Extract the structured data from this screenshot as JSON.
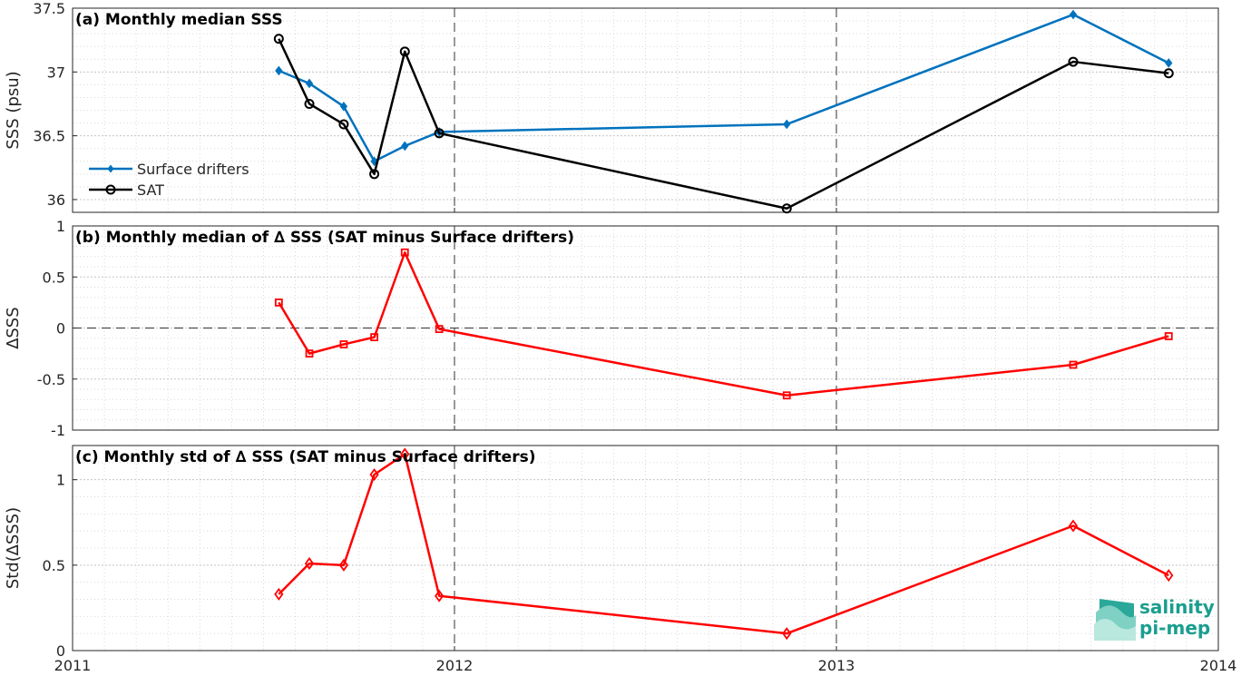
{
  "chart_data": [
    {
      "type": "line",
      "title": "(a) Monthly median SSS",
      "ylabel": "SSS (psu)",
      "ylim": [
        35.9,
        37.5
      ],
      "yticks": [
        36,
        36.5,
        37,
        37.5
      ],
      "ytick_labels": [
        "36",
        "36.5",
        "37",
        "37.5"
      ],
      "xlim": [
        2011.0,
        2014.0
      ],
      "xticks": [
        2011,
        2012,
        2013,
        2014
      ],
      "xtick_labels": [
        "2011",
        "2012",
        "2013",
        "2014"
      ],
      "grid": true,
      "legend_position": "lower-left",
      "x": [
        2011.54,
        2011.62,
        2011.71,
        2011.79,
        2011.87,
        2011.96,
        2012.87,
        2013.62,
        2013.87
      ],
      "series": [
        {
          "name": "Surface drifters",
          "color": "#0072BD",
          "marker": "diamond-filled",
          "values": [
            37.01,
            36.91,
            36.73,
            36.3,
            36.42,
            36.53,
            36.59,
            37.45,
            37.07
          ]
        },
        {
          "name": "SAT",
          "color": "#000000",
          "marker": "circle-open",
          "values": [
            37.26,
            36.75,
            36.59,
            36.2,
            37.16,
            36.52,
            35.93,
            37.08,
            36.99
          ]
        }
      ]
    },
    {
      "type": "line",
      "title": "(b) Monthly median of ∆ SSS (SAT minus Surface drifters)",
      "ylabel": "∆SSS",
      "ylim": [
        -1,
        1
      ],
      "yticks": [
        -1,
        -0.5,
        0,
        0.5,
        1
      ],
      "ytick_labels": [
        "-1",
        "-0.5",
        "0",
        "0.5",
        "1"
      ],
      "xlim": [
        2011.0,
        2014.0
      ],
      "grid": true,
      "zero_line": true,
      "x": [
        2011.54,
        2011.62,
        2011.71,
        2011.79,
        2011.87,
        2011.96,
        2012.87,
        2013.62,
        2013.87
      ],
      "series": [
        {
          "color": "#FF0000",
          "marker": "square-open",
          "values": [
            0.25,
            -0.25,
            -0.16,
            -0.09,
            0.74,
            -0.01,
            -0.66,
            -0.36,
            -0.08
          ]
        }
      ]
    },
    {
      "type": "line",
      "title": "(c) Monthly std of ∆ SSS (SAT minus Surface drifters)",
      "ylabel": "Std(∆SSS)",
      "ylim": [
        0,
        1.2
      ],
      "yticks": [
        0,
        0.5,
        1
      ],
      "ytick_labels": [
        "0",
        "0.5",
        "1"
      ],
      "xlim": [
        2011.0,
        2014.0
      ],
      "xticks": [
        2011,
        2012,
        2013,
        2014
      ],
      "xtick_labels": [
        "2011",
        "2012",
        "2013",
        "2014"
      ],
      "grid": true,
      "x": [
        2011.54,
        2011.62,
        2011.71,
        2011.79,
        2011.87,
        2011.96,
        2012.87,
        2013.62,
        2013.87
      ],
      "series": [
        {
          "color": "#FF0000",
          "marker": "diamond-open",
          "values": [
            0.33,
            0.51,
            0.5,
            1.03,
            1.15,
            0.32,
            0.1,
            0.73,
            0.44
          ]
        }
      ]
    }
  ],
  "logo": {
    "line1": "salinity",
    "line2": "pi-mep",
    "color": "#1a9e8f"
  }
}
